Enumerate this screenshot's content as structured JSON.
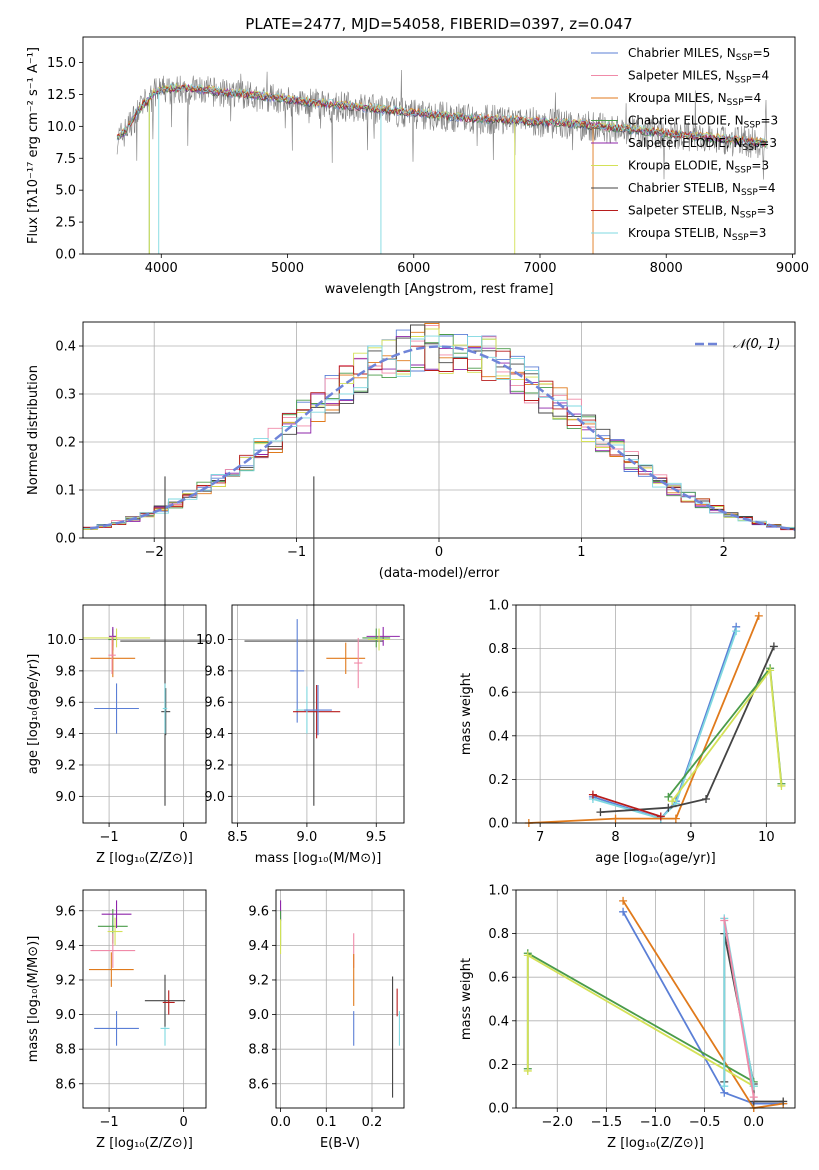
{
  "chart_data": [
    {
      "id": "spectrum",
      "type": "line",
      "title": "PLATE=2477, MJD=54058, FIBERID=0397, z=0.047",
      "xlabel": "wavelength [Angstrom, rest frame]",
      "ylabel": "Flux [fλ10⁻¹⁷ erg cm⁻² s⁻¹ A⁻¹]",
      "xlim": [
        3380,
        9020
      ],
      "ylim": [
        0,
        17
      ],
      "xticks": [
        "4000",
        "5000",
        "6000",
        "7000",
        "8000",
        "9000"
      ],
      "yticks": [
        "0.0",
        "2.5",
        "5.0",
        "7.5",
        "10.0",
        "12.5",
        "15.0"
      ],
      "legend_position": "top-right",
      "grid": false,
      "data_x": [
        3650,
        3700,
        3750,
        3800,
        3850,
        3900,
        3950,
        4000,
        4100,
        4200,
        4300,
        4400,
        4500,
        4600,
        4700,
        4800,
        4900,
        5000,
        5100,
        5200,
        5300,
        5400,
        5500,
        5600,
        5700,
        5800,
        5900,
        6000,
        6100,
        6200,
        6300,
        6400,
        6500,
        6600,
        6700,
        6800,
        6900,
        7000,
        7100,
        7200,
        7300,
        7400,
        7500,
        7600,
        7700,
        7800,
        7900,
        8000,
        8100,
        8200,
        8300,
        8400,
        8500,
        8600,
        8700,
        8800
      ],
      "data_y": [
        9.0,
        9.4,
        10.1,
        10.9,
        11.6,
        12.0,
        12.6,
        12.8,
        12.9,
        12.9,
        12.8,
        12.7,
        12.6,
        12.5,
        12.4,
        12.3,
        12.2,
        12.0,
        11.9,
        11.8,
        11.7,
        11.6,
        11.5,
        11.4,
        11.3,
        11.2,
        11.1,
        11.0,
        10.9,
        10.8,
        10.7,
        10.6,
        10.55,
        10.5,
        10.45,
        10.4,
        10.35,
        10.3,
        10.25,
        10.2,
        10.1,
        10.0,
        9.9,
        9.8,
        9.7,
        9.6,
        9.5,
        9.4,
        9.3,
        9.2,
        9.1,
        9.0,
        8.9,
        8.8,
        8.7,
        8.6
      ],
      "series": [
        {
          "name": "Chabrier MILES, N",
          "sub": "SSP",
          "suffix": "=5",
          "color": "#5b7fd6"
        },
        {
          "name": "Salpeter MILES, N",
          "sub": "SSP",
          "suffix": "=4",
          "color": "#f08aa8"
        },
        {
          "name": "Kroupa MILES, N",
          "sub": "SSP",
          "suffix": "=4",
          "color": "#e07a1c"
        },
        {
          "name": "Chabrier ELODIE, N",
          "sub": "SSP",
          "suffix": "=3",
          "color": "#4a9b4a"
        },
        {
          "name": "Salpeter ELODIE, N",
          "sub": "SSP",
          "suffix": "=3",
          "color": "#8e24aa"
        },
        {
          "name": "Kroupa ELODIE, N",
          "sub": "SSP",
          "suffix": "=3",
          "color": "#d4e157"
        },
        {
          "name": "Chabrier STELIB, N",
          "sub": "SSP",
          "suffix": "=4",
          "color": "#444444"
        },
        {
          "name": "Salpeter STELIB, N",
          "sub": "SSP",
          "suffix": "=3",
          "color": "#b71c1c"
        },
        {
          "name": "Kroupa STELIB, N",
          "sub": "SSP",
          "suffix": "=3",
          "color": "#7fd8e0"
        }
      ]
    },
    {
      "id": "residuals",
      "type": "line",
      "xlabel": "(data-model)/error",
      "ylabel": "Normed distribution",
      "xlim": [
        -2.5,
        2.5
      ],
      "ylim": [
        0,
        0.45
      ],
      "xticks": [
        "−2",
        "−1",
        "0",
        "1",
        "2"
      ],
      "yticks": [
        "0.0",
        "0.1",
        "0.2",
        "0.3",
        "0.4"
      ],
      "grid": true,
      "legend": "𝒩(0, 1)",
      "bin_width": 0.1,
      "bin_start": -2.5,
      "series_colors": [
        "#5b7fd6",
        "#f08aa8",
        "#e07a1c",
        "#4a9b4a",
        "#8e24aa",
        "#d4e157",
        "#444444",
        "#b71c1c",
        "#7fd8e0"
      ]
    },
    {
      "id": "age-vs-Z",
      "type": "scatter",
      "xlabel": "Z [log₁₀(Z/Z⊙)]",
      "ylabel": "age  [log₁₀(age/yr)]",
      "xlim": [
        -1.35,
        0.3
      ],
      "ylim": [
        8.83,
        10.22
      ],
      "xticks": [
        "−1",
        "0"
      ],
      "yticks": [
        "9.0",
        "9.2",
        "9.4",
        "9.6",
        "9.8",
        "10.0"
      ],
      "grid": true,
      "points": [
        {
          "x": -0.95,
          "y": 10.0,
          "xerr": 0.06,
          "yerr": 0.07,
          "color": "#4a9b4a"
        },
        {
          "x": -0.95,
          "y": 10.02,
          "xerr": 0.05,
          "yerr": 0.06,
          "color": "#8e24aa"
        },
        {
          "x": -0.9,
          "y": 10.01,
          "xerr": 0.45,
          "yerr": 0.06,
          "color": "#d4e157"
        },
        {
          "x": -0.95,
          "y": 9.88,
          "xerr": 0.3,
          "yerr": 0.12,
          "color": "#e07a1c"
        },
        {
          "x": -0.96,
          "y": 9.9,
          "xerr": 0.05,
          "yerr": 0.12,
          "color": "#f08aa8"
        },
        {
          "x": -0.9,
          "y": 9.56,
          "xerr": 0.3,
          "yerr": 0.16,
          "color": "#5b7fd6"
        },
        {
          "x": -0.25,
          "y": 9.99,
          "xerr": 0.6,
          "yerr": 1.05,
          "color": "#444444"
        },
        {
          "x": -0.24,
          "y": 9.54,
          "xerr": 0.06,
          "yerr": 0.15,
          "color": "#444444"
        },
        {
          "x": -0.25,
          "y": 9.56,
          "xerr": 0.03,
          "yerr": 0.16,
          "color": "#7fd8e0"
        }
      ]
    },
    {
      "id": "age-vs-mass",
      "type": "scatter",
      "xlabel": "mass [log₁₀(M/M⊙)]",
      "ylabel": "",
      "xlim": [
        8.46,
        9.7
      ],
      "ylim": [
        8.83,
        10.22
      ],
      "xticks": [
        "8.5",
        "9.0",
        "9.5"
      ],
      "yticks": [
        "9.0",
        "9.2",
        "9.4",
        "9.6",
        "9.8",
        "10.0"
      ],
      "grid": true,
      "points": [
        {
          "x": 9.05,
          "y": 9.99,
          "xerr": 0.5,
          "yerr": 1.05,
          "color": "#444444"
        },
        {
          "x": 8.93,
          "y": 9.8,
          "xerr": 0.05,
          "yerr": 0.33,
          "color": "#5b7fd6"
        },
        {
          "x": 9.28,
          "y": 9.88,
          "xerr": 0.14,
          "yerr": 0.1,
          "color": "#e07a1c"
        },
        {
          "x": 9.37,
          "y": 9.85,
          "xerr": 0.03,
          "yerr": 0.16,
          "color": "#f08aa8"
        },
        {
          "x": 9.55,
          "y": 10.02,
          "xerr": 0.12,
          "yerr": 0.06,
          "color": "#8e24aa"
        },
        {
          "x": 9.5,
          "y": 10.01,
          "xerr": 0.1,
          "yerr": 0.06,
          "color": "#4a9b4a"
        },
        {
          "x": 9.52,
          "y": 10.0,
          "xerr": 0.08,
          "yerr": 0.07,
          "color": "#d4e157"
        },
        {
          "x": 9.07,
          "y": 9.54,
          "xerr": 0.17,
          "yerr": 0.17,
          "color": "#b71c1c"
        },
        {
          "x": 9.0,
          "y": 9.55,
          "xerr": 0.08,
          "yerr": 0.15,
          "color": "#7fd8e0"
        },
        {
          "x": 9.08,
          "y": 9.55,
          "xerr": 0.1,
          "yerr": 0.16,
          "color": "#5b7fd6"
        }
      ]
    },
    {
      "id": "weight-vs-age",
      "type": "line",
      "xlabel": "age  [log₁₀(age/yr)]",
      "ylabel": "mass weight",
      "xlim": [
        6.68,
        10.38
      ],
      "ylim": [
        0,
        1
      ],
      "xticks": [
        "7",
        "8",
        "9",
        "10"
      ],
      "yticks": [
        "0.0",
        "0.2",
        "0.4",
        "0.6",
        "0.8",
        "1.0"
      ],
      "grid": true,
      "series": [
        {
          "color": "#5b7fd6",
          "x": [
            7.7,
            8.6,
            8.8,
            9.6
          ],
          "y": [
            0.12,
            0.02,
            0.1,
            0.9
          ]
        },
        {
          "color": "#7fd8e0",
          "x": [
            7.7,
            8.6,
            8.8,
            9.6
          ],
          "y": [
            0.11,
            0.02,
            0.09,
            0.88
          ]
        },
        {
          "color": "#e07a1c",
          "x": [
            6.85,
            8.0,
            8.8,
            9.9
          ],
          "y": [
            0.0,
            0.02,
            0.02,
            0.95
          ]
        },
        {
          "color": "#444444",
          "x": [
            7.8,
            8.7,
            9.2,
            10.1
          ],
          "y": [
            0.05,
            0.07,
            0.11,
            0.81
          ]
        },
        {
          "color": "#4a9b4a",
          "x": [
            8.7,
            10.05,
            10.2
          ],
          "y": [
            0.12,
            0.71,
            0.18
          ]
        },
        {
          "color": "#d4e157",
          "x": [
            8.75,
            10.05,
            10.2
          ],
          "y": [
            0.1,
            0.7,
            0.17
          ]
        },
        {
          "color": "#b71c1c",
          "x": [
            7.7,
            8.6
          ],
          "y": [
            0.13,
            0.03
          ]
        }
      ]
    },
    {
      "id": "mass-vs-Z",
      "type": "scatter",
      "xlabel": "Z [log₁₀(Z/Z⊙)]",
      "ylabel": "mass [log₁₀(M/M⊙)]",
      "xlim": [
        -1.35,
        0.3
      ],
      "ylim": [
        8.46,
        9.72
      ],
      "xticks": [
        "−1",
        "0"
      ],
      "yticks": [
        "8.6",
        "8.8",
        "9.0",
        "9.2",
        "9.4",
        "9.6"
      ],
      "grid": true,
      "points": [
        {
          "x": -0.95,
          "y": 9.51,
          "xerr": 0.2,
          "yerr": 0.1,
          "color": "#4a9b4a"
        },
        {
          "x": -0.9,
          "y": 9.58,
          "xerr": 0.2,
          "yerr": 0.08,
          "color": "#8e24aa"
        },
        {
          "x": -0.92,
          "y": 9.48,
          "xerr": 0.1,
          "yerr": 0.08,
          "color": "#d4e157"
        },
        {
          "x": -0.95,
          "y": 9.37,
          "xerr": 0.3,
          "yerr": 0.1,
          "color": "#f08aa8"
        },
        {
          "x": -0.97,
          "y": 9.26,
          "xerr": 0.3,
          "yerr": 0.1,
          "color": "#e07a1c"
        },
        {
          "x": -0.9,
          "y": 8.92,
          "xerr": 0.3,
          "yerr": 0.1,
          "color": "#5b7fd6"
        },
        {
          "x": -0.25,
          "y": 8.92,
          "xerr": 0.06,
          "yerr": 0.1,
          "color": "#7fd8e0"
        },
        {
          "x": -0.25,
          "y": 9.08,
          "xerr": 0.27,
          "yerr": 0.15,
          "color": "#444444"
        },
        {
          "x": -0.2,
          "y": 9.07,
          "xerr": 0.08,
          "yerr": 0.07,
          "color": "#b71c1c"
        }
      ]
    },
    {
      "id": "mass-vs-EBV",
      "type": "scatter",
      "xlabel": "E(B-V)",
      "ylabel": "",
      "xlim": [
        -0.01,
        0.27
      ],
      "ylim": [
        8.46,
        9.72
      ],
      "xticks": [
        "0.0",
        "0.1",
        "0.2"
      ],
      "yticks": [
        "8.6",
        "8.8",
        "9.0",
        "9.2",
        "9.4",
        "9.6"
      ],
      "grid": true,
      "points": [
        {
          "x": 0.0,
          "y": 9.6,
          "xerr": 0.0,
          "yerr": 0.06,
          "color": "#8e24aa"
        },
        {
          "x": 0.0,
          "y": 9.5,
          "xerr": 0.0,
          "yerr": 0.1,
          "color": "#4a9b4a"
        },
        {
          "x": 0.0,
          "y": 9.45,
          "xerr": 0.0,
          "yerr": 0.1,
          "color": "#d4e157"
        },
        {
          "x": 0.16,
          "y": 9.37,
          "xerr": 0.0,
          "yerr": 0.1,
          "color": "#f08aa8"
        },
        {
          "x": 0.16,
          "y": 9.2,
          "xerr": 0.0,
          "yerr": 0.15,
          "color": "#e07a1c"
        },
        {
          "x": 0.16,
          "y": 8.92,
          "xerr": 0.0,
          "yerr": 0.1,
          "color": "#5b7fd6"
        },
        {
          "x": 0.245,
          "y": 8.87,
          "xerr": 0.0,
          "yerr": 0.35,
          "color": "#444444"
        },
        {
          "x": 0.255,
          "y": 9.07,
          "xerr": 0.0,
          "yerr": 0.08,
          "color": "#b71c1c"
        },
        {
          "x": 0.26,
          "y": 8.92,
          "xerr": 0.0,
          "yerr": 0.1,
          "color": "#7fd8e0"
        }
      ]
    },
    {
      "id": "weight-vs-Z",
      "type": "line",
      "xlabel": "Z [log₁₀(Z/Z⊙)]",
      "ylabel": "mass weight",
      "xlim": [
        -2.42,
        0.42
      ],
      "ylim": [
        0,
        1
      ],
      "xticks": [
        "−2.0",
        "−1.5",
        "−1.0",
        "−0.5",
        "0.0"
      ],
      "yticks": [
        "0.0",
        "0.2",
        "0.4",
        "0.6",
        "0.8",
        "1.0"
      ],
      "grid": true,
      "series": [
        {
          "color": "#5b7fd6",
          "x": [
            -1.33,
            -0.3,
            0.0,
            0.3
          ],
          "y": [
            0.9,
            0.07,
            0.02,
            0.02
          ]
        },
        {
          "color": "#e07a1c",
          "x": [
            -1.33,
            0.0,
            0.3
          ],
          "y": [
            0.95,
            0.0,
            0.02
          ]
        },
        {
          "color": "#444444",
          "x": [
            -0.3,
            -0.3,
            0.0,
            0.0,
            0.3
          ],
          "y": [
            0.12,
            0.8,
            0.11,
            0.03,
            0.03
          ]
        },
        {
          "color": "#4a9b4a",
          "x": [
            -2.3,
            -2.3,
            0.0
          ],
          "y": [
            0.18,
            0.71,
            0.12
          ]
        },
        {
          "color": "#d4e157",
          "x": [
            -2.3,
            -2.3,
            0.0
          ],
          "y": [
            0.17,
            0.7,
            0.1
          ]
        },
        {
          "color": "#7fd8e0",
          "x": [
            -0.3,
            -0.3,
            0.0
          ],
          "y": [
            0.1,
            0.87,
            0.1
          ]
        },
        {
          "color": "#f08aa8",
          "x": [
            -0.3,
            0.0
          ],
          "y": [
            0.86,
            0.05
          ]
        }
      ]
    }
  ]
}
